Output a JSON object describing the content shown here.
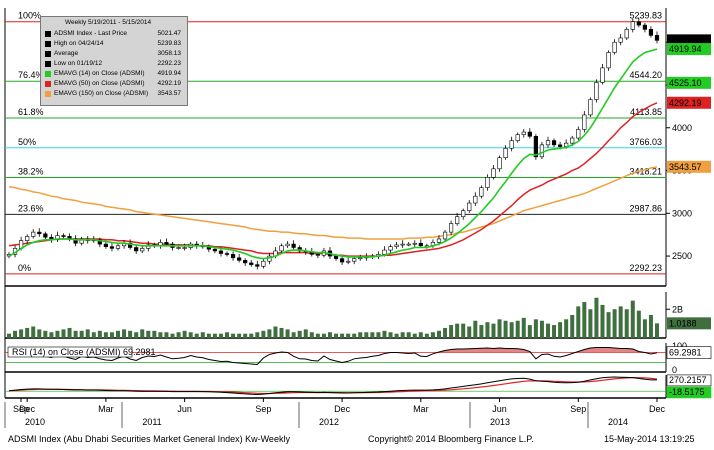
{
  "chart_data": {
    "type": "line",
    "legend": {
      "header": "Weekly 5/19/2011 - 5/15/2014",
      "entries": [
        {
          "label": "ADSMI Index - Last Price",
          "value": "5021.47",
          "color": "#000000"
        },
        {
          "label": "High on 04/24/14",
          "value": "5239.83",
          "color": "#000000"
        },
        {
          "label": "Average",
          "value": "3058.13",
          "color": "#000000"
        },
        {
          "label": "Low on 01/19/12",
          "value": "2292.23",
          "color": "#000000"
        },
        {
          "label": "EMAVG (14) on Close (ADSMI)",
          "value": "4919.94",
          "color": "#22cc22"
        },
        {
          "label": "EMAVG (50) on Close (ADSMI)",
          "value": "4292.19",
          "color": "#dd2222"
        },
        {
          "label": "EMAVG (150) on Close (ADSMI)",
          "value": "3543.57",
          "color": "#f0a040"
        }
      ]
    },
    "price_panel": {
      "ylim": [
        2150,
        5400
      ],
      "yticks": [
        2500,
        3000,
        3500,
        4000,
        4500,
        5000
      ],
      "fib_levels": [
        {
          "pct": "100%",
          "value": 5239.83,
          "label": "5239.83",
          "color": "#dd2222"
        },
        {
          "pct": "76.4%",
          "value": 4544.2,
          "label": "4544.20",
          "color": "#22aa22"
        },
        {
          "pct": "61.8%",
          "value": 4113.85,
          "label": "4113.85",
          "color": "#22aa22"
        },
        {
          "pct": "50%",
          "value": 3766.03,
          "label": "3766.03",
          "color": "#33d6e6"
        },
        {
          "pct": "38.2%",
          "value": 3418.21,
          "label": "3418.21",
          "color": "#22aa22"
        },
        {
          "pct": "23.6%",
          "value": 2987.86,
          "label": "2987.86",
          "color": "#222222"
        },
        {
          "pct": "0%",
          "value": 2292.23,
          "label": "2292.23",
          "color": "#dd2222"
        }
      ],
      "badges": [
        {
          "value": 5021.47,
          "label": "5021.47",
          "bg": "#000000",
          "fg": "#ffffff"
        },
        {
          "value": 4919.94,
          "label": "4919.94",
          "bg": "#22cc22",
          "fg": "#000000"
        },
        {
          "value": 4525.1,
          "label": "4525.10",
          "bg": "#22cc22",
          "fg": "#000000"
        },
        {
          "value": 4292.19,
          "label": "4292.19",
          "bg": "#dd2222",
          "fg": "#000000"
        },
        {
          "value": 3543.57,
          "label": "3543.57",
          "bg": "#f0a040",
          "fg": "#000000"
        }
      ],
      "close": [
        2520,
        2590,
        2680,
        2730,
        2780,
        2760,
        2720,
        2690,
        2740,
        2730,
        2700,
        2650,
        2700,
        2680,
        2690,
        2640,
        2610,
        2590,
        2620,
        2650,
        2600,
        2560,
        2590,
        2630,
        2620,
        2660,
        2640,
        2600,
        2600,
        2600,
        2640,
        2620,
        2610,
        2580,
        2560,
        2530,
        2520,
        2480,
        2450,
        2420,
        2400,
        2380,
        2440,
        2500,
        2560,
        2620,
        2640,
        2600,
        2560,
        2550,
        2520,
        2510,
        2560,
        2500,
        2470,
        2430,
        2440,
        2470,
        2480,
        2490,
        2500,
        2520,
        2570,
        2610,
        2630,
        2640,
        2640,
        2650,
        2620,
        2620,
        2660,
        2700,
        2780,
        2880,
        2960,
        3030,
        3120,
        3200,
        3300,
        3420,
        3520,
        3650,
        3760,
        3850,
        3920,
        3950,
        3900,
        3660,
        3800,
        3850,
        3800,
        3780,
        3820,
        3880,
        3980,
        4150,
        4330,
        4530,
        4700,
        4880,
        5000,
        5050,
        5150,
        5240,
        5200,
        5150,
        5080,
        5021.47
      ],
      "ema14": [
        2500,
        2540,
        2590,
        2630,
        2660,
        2680,
        2690,
        2690,
        2700,
        2700,
        2700,
        2690,
        2690,
        2690,
        2690,
        2680,
        2670,
        2660,
        2650,
        2650,
        2640,
        2630,
        2620,
        2620,
        2620,
        2620,
        2620,
        2620,
        2620,
        2620,
        2620,
        2620,
        2620,
        2610,
        2600,
        2590,
        2580,
        2570,
        2550,
        2530,
        2500,
        2480,
        2470,
        2480,
        2500,
        2530,
        2560,
        2570,
        2570,
        2560,
        2550,
        2540,
        2540,
        2530,
        2510,
        2500,
        2490,
        2490,
        2490,
        2490,
        2490,
        2500,
        2510,
        2530,
        2550,
        2570,
        2580,
        2600,
        2600,
        2600,
        2620,
        2640,
        2670,
        2710,
        2760,
        2820,
        2880,
        2950,
        3020,
        3100,
        3180,
        3280,
        3370,
        3470,
        3560,
        3640,
        3690,
        3680,
        3710,
        3740,
        3750,
        3760,
        3770,
        3800,
        3840,
        3910,
        4000,
        4110,
        4230,
        4350,
        4470,
        4570,
        4670,
        4770,
        4830,
        4880,
        4900,
        4919.94
      ],
      "ema50": [
        2620,
        2630,
        2640,
        2650,
        2660,
        2670,
        2680,
        2690,
        2700,
        2700,
        2700,
        2700,
        2700,
        2700,
        2700,
        2700,
        2690,
        2690,
        2680,
        2680,
        2670,
        2660,
        2650,
        2650,
        2640,
        2640,
        2640,
        2630,
        2630,
        2630,
        2630,
        2620,
        2620,
        2620,
        2610,
        2610,
        2600,
        2590,
        2580,
        2570,
        2560,
        2540,
        2530,
        2530,
        2530,
        2540,
        2540,
        2540,
        2540,
        2540,
        2530,
        2530,
        2530,
        2520,
        2510,
        2510,
        2500,
        2500,
        2500,
        2500,
        2500,
        2500,
        2510,
        2510,
        2520,
        2530,
        2540,
        2550,
        2560,
        2570,
        2580,
        2590,
        2610,
        2630,
        2660,
        2690,
        2730,
        2770,
        2810,
        2860,
        2910,
        2970,
        3030,
        3090,
        3160,
        3220,
        3270,
        3300,
        3330,
        3370,
        3400,
        3430,
        3460,
        3500,
        3530,
        3580,
        3640,
        3700,
        3770,
        3850,
        3920,
        4000,
        4060,
        4130,
        4180,
        4220,
        4260,
        4292.19
      ],
      "ema150": [
        3310,
        3300,
        3280,
        3270,
        3250,
        3240,
        3220,
        3200,
        3190,
        3170,
        3160,
        3150,
        3130,
        3120,
        3110,
        3100,
        3080,
        3070,
        3060,
        3050,
        3040,
        3020,
        3010,
        3000,
        2990,
        2980,
        2970,
        2960,
        2950,
        2940,
        2930,
        2920,
        2910,
        2900,
        2890,
        2880,
        2870,
        2860,
        2850,
        2840,
        2820,
        2810,
        2800,
        2790,
        2790,
        2780,
        2780,
        2770,
        2760,
        2760,
        2750,
        2740,
        2740,
        2730,
        2720,
        2720,
        2710,
        2710,
        2710,
        2700,
        2700,
        2700,
        2700,
        2700,
        2700,
        2700,
        2710,
        2710,
        2710,
        2720,
        2720,
        2730,
        2740,
        2750,
        2770,
        2780,
        2800,
        2820,
        2840,
        2860,
        2880,
        2910,
        2940,
        2970,
        3000,
        3030,
        3050,
        3070,
        3090,
        3110,
        3130,
        3150,
        3170,
        3190,
        3210,
        3230,
        3260,
        3290,
        3320,
        3350,
        3380,
        3410,
        3440,
        3470,
        3490,
        3510,
        3530,
        3543.57
      ]
    },
    "volume_panel": {
      "ylim": [
        0,
        3.2
      ],
      "ytick_label": "2B",
      "ytick_value": 2,
      "last_label": "1.0188",
      "values": [
        0.3,
        0.5,
        0.6,
        0.7,
        0.8,
        0.6,
        0.5,
        0.4,
        0.5,
        0.6,
        0.7,
        0.5,
        0.5,
        0.6,
        0.4,
        0.5,
        0.4,
        0.4,
        0.5,
        0.6,
        0.5,
        0.4,
        0.6,
        0.5,
        0.5,
        0.4,
        0.4,
        0.3,
        0.4,
        0.5,
        0.4,
        0.3,
        0.4,
        0.3,
        0.3,
        0.3,
        0.4,
        0.3,
        0.3,
        0.3,
        0.3,
        0.4,
        0.5,
        0.6,
        0.8,
        0.7,
        0.6,
        0.4,
        0.5,
        0.6,
        0.4,
        0.3,
        0.3,
        0.4,
        0.3,
        0.3,
        0.3,
        0.3,
        0.4,
        0.4,
        0.4,
        0.4,
        0.5,
        0.4,
        0.3,
        0.4,
        0.4,
        0.3,
        0.4,
        0.3,
        0.4,
        0.5,
        0.7,
        0.9,
        1.0,
        1.0,
        0.8,
        1.2,
        0.9,
        1.1,
        1.0,
        1.3,
        1.2,
        1.1,
        1.2,
        1.4,
        0.9,
        1.3,
        1.2,
        1.0,
        0.9,
        1.1,
        1.3,
        1.6,
        2.2,
        2.5,
        2.0,
        2.8,
        2.3,
        1.8,
        2.0,
        2.2,
        2.0,
        2.6,
        1.9,
        1.3,
        1.6,
        1.02
      ]
    },
    "rsi_panel": {
      "label": "RSI (14) on Close (ADSMI)",
      "value_label": "69.2981",
      "ylim": [
        0,
        100
      ],
      "ytick_labels": [
        "100",
        "0"
      ],
      "values": [
        55,
        62,
        68,
        70,
        72,
        64,
        55,
        50,
        60,
        55,
        48,
        42,
        55,
        50,
        52,
        45,
        40,
        38,
        48,
        55,
        44,
        38,
        50,
        56,
        54,
        60,
        52,
        45,
        47,
        50,
        58,
        52,
        49,
        42,
        38,
        34,
        35,
        30,
        28,
        26,
        24,
        22,
        48,
        62,
        68,
        72,
        70,
        55,
        45,
        44,
        38,
        36,
        56,
        42,
        36,
        30,
        35,
        45,
        48,
        50,
        55,
        58,
        66,
        70,
        70,
        68,
        66,
        68,
        55,
        54,
        65,
        72,
        78,
        82,
        84,
        84,
        85,
        86,
        87,
        88,
        86,
        88,
        86,
        86,
        85,
        82,
        74,
        45,
        62,
        64,
        55,
        52,
        58,
        66,
        74,
        82,
        88,
        90,
        90,
        90,
        88,
        86,
        86,
        84,
        74,
        70,
        64,
        69.3
      ]
    },
    "macd_panel": {
      "ylim": [
        -140,
        340
      ],
      "labels": [
        {
          "value": 270.2157,
          "label": "270.2157",
          "bg": "#ffffff",
          "fg": "#000000",
          "border": "#000000"
        },
        {
          "value": -18.5175,
          "label": "-18.5175",
          "bg": "#22cc22",
          "fg": "#000000",
          "border": "#22cc22"
        }
      ],
      "macd": [
        10,
        25,
        40,
        50,
        55,
        55,
        50,
        45,
        45,
        40,
        35,
        30,
        30,
        25,
        25,
        20,
        15,
        10,
        10,
        10,
        5,
        0,
        -5,
        -5,
        -5,
        -5,
        -5,
        -10,
        -10,
        -10,
        -10,
        -10,
        -10,
        -15,
        -20,
        -25,
        -35,
        -45,
        -55,
        -65,
        -75,
        -80,
        -70,
        -55,
        -40,
        -25,
        -15,
        -15,
        -20,
        -25,
        -30,
        -35,
        -30,
        -35,
        -40,
        -45,
        -45,
        -40,
        -35,
        -30,
        -25,
        -20,
        -10,
        0,
        10,
        15,
        20,
        25,
        25,
        25,
        30,
        40,
        55,
        75,
        95,
        115,
        135,
        155,
        175,
        200,
        225,
        250,
        275,
        295,
        305,
        310,
        290,
        250,
        240,
        230,
        215,
        205,
        200,
        205,
        215,
        240,
        270,
        300,
        320,
        335,
        340,
        335,
        330,
        325,
        305,
        285,
        270,
        270.2
      ],
      "signal": [
        5,
        15,
        25,
        35,
        40,
        45,
        45,
        45,
        45,
        42,
        40,
        38,
        36,
        34,
        32,
        30,
        28,
        25,
        22,
        20,
        17,
        14,
        11,
        8,
        6,
        4,
        2,
        0,
        -2,
        -4,
        -5,
        -6,
        -7,
        -9,
        -11,
        -14,
        -18,
        -23,
        -29,
        -36,
        -44,
        -51,
        -55,
        -55,
        -52,
        -47,
        -41,
        -36,
        -33,
        -31,
        -31,
        -32,
        -32,
        -33,
        -34,
        -35,
        -36,
        -37,
        -36,
        -35,
        -33,
        -31,
        -27,
        -22,
        -16,
        -10,
        -4,
        1,
        5,
        9,
        13,
        18,
        25,
        33,
        44,
        56,
        69,
        84,
        100,
        117,
        136,
        156,
        177,
        198,
        218,
        236,
        246,
        247,
        246,
        243,
        238,
        232,
        226,
        221,
        219,
        222,
        231,
        245,
        262,
        279,
        295,
        308,
        318,
        325,
        324,
        318,
        307,
        288.7
      ]
    },
    "x_axis": {
      "month_labels": [
        "Sep",
        "Dec",
        "Mar",
        "Jun",
        "Sep",
        "Dec",
        "Mar",
        "Jun",
        "Sep",
        "Dec",
        "Mar",
        "Jun",
        "Sep",
        "Dec",
        "Mar"
      ],
      "year_labels": [
        "2010",
        "2011",
        "2012",
        "2013",
        "2014"
      ]
    }
  },
  "footer": {
    "left": "ADSMI Index (Abu Dhabi Securities Market General Index) Kw-Weekly",
    "center": "Copyright© 2014 Bloomberg Finance L.P.",
    "right": "15-May-2014 13:19:25"
  }
}
